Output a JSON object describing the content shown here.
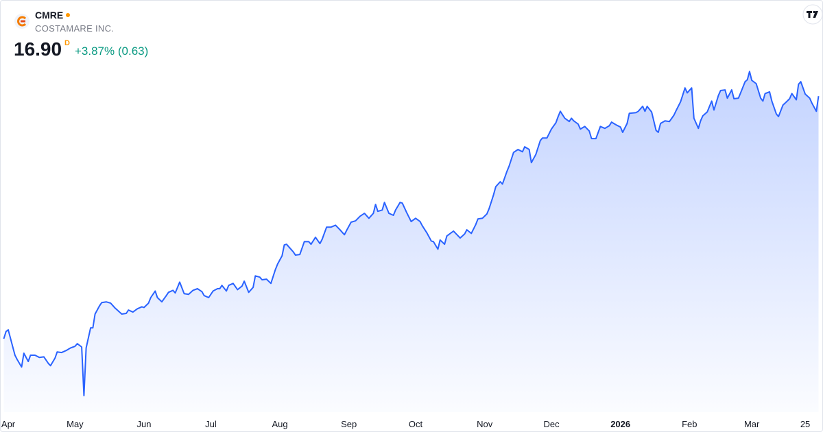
{
  "header": {
    "symbol": "CMRE",
    "company": "COSTAMARE INC.",
    "price": "16.90",
    "interval": "D",
    "change": "+3.87% (0.63)"
  },
  "chart_data": {
    "type": "area",
    "color": "#2962ff",
    "x": [
      -2,
      -1,
      0,
      3,
      4,
      6,
      7,
      9,
      10,
      12,
      14,
      16,
      18,
      19,
      21,
      22,
      24,
      26,
      28,
      30,
      31,
      33,
      34,
      35,
      37,
      38,
      39,
      41,
      42,
      44,
      46,
      48,
      50,
      51,
      53,
      54,
      56,
      58,
      60,
      61,
      63,
      64,
      66,
      67,
      69,
      71,
      72,
      74,
      75,
      77,
      79,
      81,
      83,
      85,
      87,
      88,
      90,
      92,
      94,
      95,
      96,
      98,
      99,
      101,
      103,
      105,
      106,
      108,
      110,
      111,
      113,
      114,
      116,
      118,
      120,
      121,
      123,
      124,
      125,
      128,
      129,
      131,
      133,
      135,
      136,
      138,
      140,
      141,
      143,
      145,
      147,
      149,
      151,
      152,
      154,
      156,
      158,
      160,
      162,
      164,
      165,
      166,
      168,
      169,
      171,
      173,
      174,
      176,
      177,
      179,
      181,
      183,
      185,
      186,
      188,
      190,
      191,
      193,
      194,
      196,
      197,
      200,
      201,
      203,
      205,
      206,
      208,
      210,
      211,
      213,
      215,
      216,
      218,
      219,
      221,
      222,
      224,
      225,
      227,
      229,
      231,
      232,
      234,
      235,
      237,
      239,
      240,
      242,
      244,
      246,
      247,
      248,
      250,
      252,
      253,
      254,
      256,
      257,
      259,
      261,
      262,
      264,
      266,
      268,
      270,
      271,
      273,
      275,
      276,
      278,
      279,
      282,
      283,
      285,
      286,
      287,
      289,
      291,
      292,
      293,
      295,
      297,
      299,
      300,
      302,
      304,
      305,
      307,
      308,
      310,
      311,
      312,
      314,
      316,
      317,
      319,
      320,
      322,
      323,
      325,
      326,
      328,
      329,
      331,
      332,
      333,
      334,
      336,
      338,
      339,
      340,
      342,
      343,
      345,
      346,
      348,
      349,
      351,
      352,
      354,
      355,
      356,
      358,
      360,
      361,
      363,
      364
    ],
    "values": [
      9.53,
      9.75,
      9.8,
      9.03,
      8.9,
      8.67,
      9.09,
      8.84,
      9.03,
      9.03,
      8.96,
      8.98,
      8.78,
      8.71,
      8.94,
      9.13,
      9.11,
      9.17,
      9.25,
      9.3,
      9.38,
      9.28,
      7.8,
      9.25,
      9.86,
      9.86,
      10.28,
      10.53,
      10.63,
      10.65,
      10.61,
      10.46,
      10.34,
      10.28,
      10.3,
      10.4,
      10.34,
      10.44,
      10.5,
      10.48,
      10.61,
      10.78,
      10.98,
      10.78,
      10.65,
      10.84,
      10.94,
      11.0,
      10.92,
      11.25,
      10.9,
      10.88,
      11.0,
      11.05,
      10.96,
      10.84,
      10.78,
      10.98,
      11.05,
      11.05,
      11.15,
      10.98,
      11.15,
      11.21,
      11.02,
      11.13,
      11.28,
      10.94,
      11.09,
      11.44,
      11.4,
      11.32,
      11.34,
      11.21,
      11.63,
      11.8,
      12.05,
      12.38,
      12.4,
      12.17,
      12.07,
      12.09,
      12.48,
      12.48,
      12.4,
      12.61,
      12.42,
      12.55,
      12.92,
      12.92,
      12.98,
      12.84,
      12.69,
      12.82,
      13.07,
      13.11,
      13.25,
      13.34,
      13.19,
      13.34,
      13.61,
      13.4,
      13.44,
      13.67,
      13.34,
      13.28,
      13.44,
      13.67,
      13.65,
      13.36,
      13.09,
      13.19,
      13.09,
      12.96,
      12.75,
      12.5,
      12.48,
      12.25,
      12.53,
      12.4,
      12.65,
      12.8,
      12.73,
      12.59,
      12.71,
      12.84,
      12.73,
      13.0,
      13.17,
      13.19,
      13.32,
      13.48,
      13.9,
      14.15,
      14.3,
      14.23,
      14.61,
      14.78,
      15.19,
      15.28,
      15.21,
      15.36,
      15.28,
      14.88,
      15.13,
      15.55,
      15.63,
      15.63,
      15.9,
      16.09,
      16.28,
      16.44,
      16.23,
      16.13,
      16.23,
      16.15,
      16.05,
      15.9,
      15.98,
      15.84,
      15.61,
      15.61,
      15.98,
      15.92,
      16.0,
      16.11,
      16.03,
      15.96,
      15.8,
      16.07,
      16.38,
      16.4,
      16.44,
      16.59,
      16.44,
      16.59,
      16.42,
      15.86,
      15.8,
      16.07,
      16.15,
      16.13,
      16.32,
      16.46,
      16.73,
      17.15,
      17.0,
      17.15,
      16.23,
      15.92,
      16.15,
      16.3,
      16.42,
      16.75,
      16.48,
      16.92,
      17.07,
      17.09,
      16.84,
      17.09,
      16.82,
      16.84,
      17.0,
      17.34,
      17.4,
      17.65,
      17.38,
      17.28,
      16.84,
      16.75,
      16.98,
      17.03,
      16.75,
      16.36,
      16.28,
      16.63,
      16.69,
      16.82,
      16.98,
      16.79,
      17.26,
      17.34,
      16.96,
      16.84,
      16.69,
      16.44,
      16.9
    ],
    "xlim": [
      -3.4,
      366.3
    ],
    "ylim": [
      7.3,
      19.8
    ],
    "xticks": [
      {
        "value": 0,
        "label": "Apr"
      },
      {
        "value": 30,
        "label": "May"
      },
      {
        "value": 61,
        "label": "Jun"
      },
      {
        "value": 91,
        "label": "Jul"
      },
      {
        "value": 122,
        "label": "Aug"
      },
      {
        "value": 153,
        "label": "Sep"
      },
      {
        "value": 183,
        "label": "Oct"
      },
      {
        "value": 214,
        "label": "Nov"
      },
      {
        "value": 244,
        "label": "Dec"
      },
      {
        "value": 275,
        "label": "2026"
      },
      {
        "value": 306,
        "label": "Feb"
      },
      {
        "value": 334,
        "label": "Mar"
      },
      {
        "value": 358,
        "label": "25"
      }
    ]
  }
}
